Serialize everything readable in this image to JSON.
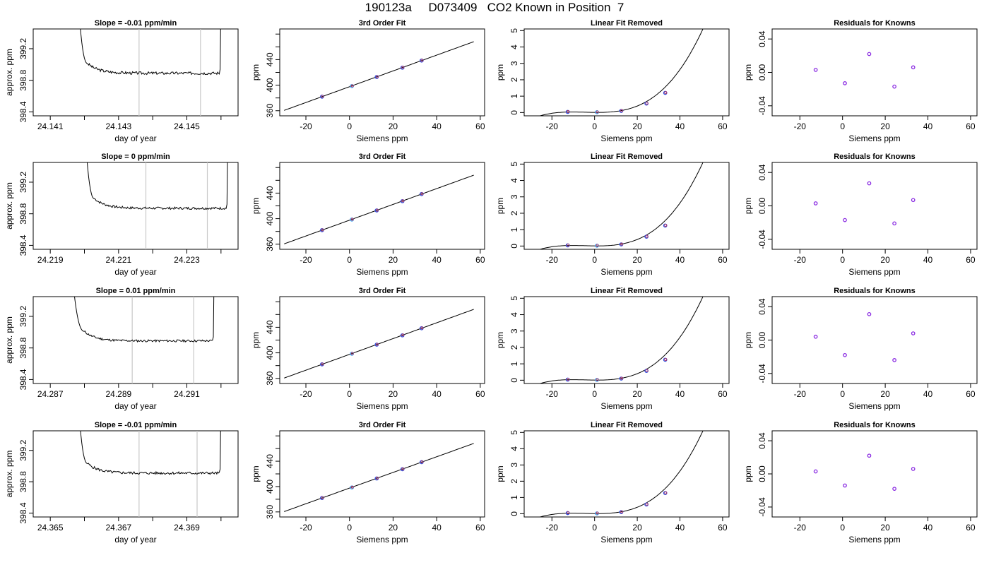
{
  "page_title": "190123a     D073409   CO2 Known in Position  7",
  "chart_data": [
    {
      "row": 0,
      "col": 0,
      "type": "line",
      "title": "Slope =  -0.01  ppm/min",
      "xlabel": "day of year",
      "ylabel": "approx. ppm",
      "xlim": [
        24.1405,
        24.1465
      ],
      "ylim": [
        398.35,
        399.45
      ],
      "xticks": [
        "24.141",
        "24.143",
        "24.145"
      ],
      "yticks": [
        "398.4",
        "398.8",
        "399.2"
      ],
      "vlines": [
        24.1436,
        24.1454
      ],
      "trace": {
        "x0": 24.1418,
        "x1": 24.146,
        "plateau": 398.89,
        "wiggle": 0.018,
        "drop_end": 24.1421,
        "seed": 3
      }
    },
    {
      "row": 0,
      "col": 1,
      "type": "scatter",
      "title": "3rd Order Fit",
      "xlabel": "Siemens ppm",
      "ylabel": "ppm",
      "xlim": [
        -32,
        62
      ],
      "ylim": [
        352,
        488
      ],
      "xticks": [
        "-20",
        "0",
        "20",
        "40",
        "60"
      ],
      "yticks": [
        "360",
        "400",
        "440"
      ],
      "points": [
        [
          -12.6,
          382
        ],
        [
          1.1,
          398.6
        ],
        [
          12.5,
          412.8
        ],
        [
          24.3,
          427.4
        ],
        [
          33.1,
          438.5
        ]
      ],
      "fit_range": [
        -30,
        57
      ]
    },
    {
      "row": 0,
      "col": 2,
      "type": "scatter",
      "title": "Linear Fit Removed",
      "xlabel": "Siemens ppm",
      "ylabel": "ppm",
      "xlim": [
        -33,
        63
      ],
      "ylim": [
        -0.2,
        5.1
      ],
      "xticks": [
        "-20",
        "0",
        "20",
        "40",
        "60"
      ],
      "yticks": [
        "0",
        "1",
        "2",
        "3",
        "4",
        "5"
      ],
      "points": [
        [
          -12.6,
          0.04
        ],
        [
          1.1,
          0.02
        ],
        [
          12.5,
          0.1
        ],
        [
          24.3,
          0.55
        ],
        [
          33.1,
          1.2
        ]
      ],
      "fit_range": [
        -30,
        57
      ]
    },
    {
      "row": 0,
      "col": 3,
      "type": "scatter",
      "title": "Residuals for Knowns",
      "xlabel": "Siemens ppm",
      "ylabel": "ppm",
      "xlim": [
        -33,
        63
      ],
      "ylim": [
        -0.052,
        0.052
      ],
      "xticks": [
        "-20",
        "0",
        "20",
        "40",
        "60"
      ],
      "yticks": [
        "-0.04",
        "0.00",
        "0.04"
      ],
      "points": [
        [
          -12.6,
          0.003
        ],
        [
          1.1,
          -0.013
        ],
        [
          12.5,
          0.022
        ],
        [
          24.3,
          -0.017
        ],
        [
          33.1,
          0.006
        ]
      ]
    },
    {
      "row": 1,
      "col": 0,
      "type": "line",
      "title": "Slope =  0  ppm/min",
      "xlabel": "day of year",
      "ylabel": "approx. ppm",
      "xlim": [
        24.2185,
        24.2245
      ],
      "ylim": [
        398.35,
        399.45
      ],
      "xticks": [
        "24.219",
        "24.221",
        "24.223"
      ],
      "yticks": [
        "398.4",
        "398.8",
        "399.2"
      ],
      "vlines": [
        24.2218,
        24.2236
      ],
      "trace": {
        "x0": 24.22,
        "x1": 24.2242,
        "plateau": 398.87,
        "wiggle": 0.015,
        "drop_end": 24.2203,
        "seed": 7
      }
    },
    {
      "row": 1,
      "col": 1,
      "type": "scatter",
      "title": "3rd Order Fit",
      "xlabel": "Siemens ppm",
      "ylabel": "ppm",
      "xlim": [
        -32,
        62
      ],
      "ylim": [
        352,
        488
      ],
      "xticks": [
        "-20",
        "0",
        "20",
        "40",
        "60"
      ],
      "yticks": [
        "360",
        "400",
        "440"
      ],
      "points": [
        [
          -12.6,
          382
        ],
        [
          1.1,
          398.6
        ],
        [
          12.5,
          412.8
        ],
        [
          24.3,
          427.4
        ],
        [
          33.1,
          438.5
        ]
      ],
      "fit_range": [
        -30,
        57
      ]
    },
    {
      "row": 1,
      "col": 2,
      "type": "scatter",
      "title": "Linear Fit Removed",
      "xlabel": "Siemens ppm",
      "ylabel": "ppm",
      "xlim": [
        -33,
        63
      ],
      "ylim": [
        -0.2,
        5.1
      ],
      "xticks": [
        "-20",
        "0",
        "20",
        "40",
        "60"
      ],
      "yticks": [
        "0",
        "1",
        "2",
        "3",
        "4",
        "5"
      ],
      "points": [
        [
          -12.6,
          0.04
        ],
        [
          1.1,
          0.02
        ],
        [
          12.5,
          0.1
        ],
        [
          24.3,
          0.57
        ],
        [
          33.1,
          1.25
        ]
      ],
      "fit_range": [
        -30,
        57
      ]
    },
    {
      "row": 1,
      "col": 3,
      "type": "scatter",
      "title": "Residuals for Knowns",
      "xlabel": "Siemens ppm",
      "ylabel": "ppm",
      "xlim": [
        -33,
        63
      ],
      "ylim": [
        -0.052,
        0.052
      ],
      "xticks": [
        "-20",
        "0",
        "20",
        "40",
        "60"
      ],
      "yticks": [
        "-0.04",
        "0.00",
        "0.04"
      ],
      "points": [
        [
          -12.6,
          0.003
        ],
        [
          1.1,
          -0.017
        ],
        [
          12.5,
          0.027
        ],
        [
          24.3,
          -0.021
        ],
        [
          33.1,
          0.007
        ]
      ]
    },
    {
      "row": 2,
      "col": 0,
      "type": "line",
      "title": "Slope =  0.01  ppm/min",
      "xlabel": "day of year",
      "ylabel": "approx. ppm",
      "xlim": [
        24.2865,
        24.2925
      ],
      "ylim": [
        398.35,
        399.45
      ],
      "xticks": [
        "24.287",
        "24.289",
        "24.291"
      ],
      "yticks": [
        "398.4",
        "398.8",
        "399.2"
      ],
      "vlines": [
        24.2894,
        24.2912
      ],
      "trace": {
        "x0": 24.2876,
        "x1": 24.2918,
        "plateau": 398.89,
        "wiggle": 0.014,
        "drop_end": 24.288,
        "seed": 11
      }
    },
    {
      "row": 2,
      "col": 1,
      "type": "scatter",
      "title": "3rd Order Fit",
      "xlabel": "Siemens ppm",
      "ylabel": "ppm",
      "xlim": [
        -32,
        62
      ],
      "ylim": [
        352,
        488
      ],
      "xticks": [
        "-20",
        "0",
        "20",
        "40",
        "60"
      ],
      "yticks": [
        "360",
        "400",
        "440"
      ],
      "points": [
        [
          -12.6,
          382
        ],
        [
          1.1,
          398.6
        ],
        [
          12.5,
          412.8
        ],
        [
          24.3,
          427.4
        ],
        [
          33.1,
          438.5
        ]
      ],
      "fit_range": [
        -30,
        57
      ]
    },
    {
      "row": 2,
      "col": 2,
      "type": "scatter",
      "title": "Linear Fit Removed",
      "xlabel": "Siemens ppm",
      "ylabel": "ppm",
      "xlim": [
        -33,
        63
      ],
      "ylim": [
        -0.2,
        5.1
      ],
      "xticks": [
        "-20",
        "0",
        "20",
        "40",
        "60"
      ],
      "yticks": [
        "0",
        "1",
        "2",
        "3",
        "4",
        "5"
      ],
      "points": [
        [
          -12.6,
          0.04
        ],
        [
          1.1,
          0.02
        ],
        [
          12.5,
          0.1
        ],
        [
          24.3,
          0.57
        ],
        [
          33.1,
          1.25
        ]
      ],
      "fit_range": [
        -30,
        57
      ]
    },
    {
      "row": 2,
      "col": 3,
      "type": "scatter",
      "title": "Residuals for Knowns",
      "xlabel": "Siemens ppm",
      "ylabel": "ppm",
      "xlim": [
        -33,
        63
      ],
      "ylim": [
        -0.052,
        0.052
      ],
      "xticks": [
        "-20",
        "0",
        "20",
        "40",
        "60"
      ],
      "yticks": [
        "-0.04",
        "0.00",
        "0.04"
      ],
      "points": [
        [
          -12.6,
          0.004
        ],
        [
          1.1,
          -0.018
        ],
        [
          12.5,
          0.031
        ],
        [
          24.3,
          -0.024
        ],
        [
          33.1,
          0.008
        ]
      ]
    },
    {
      "row": 3,
      "col": 0,
      "type": "line",
      "title": "Slope =  -0.01  ppm/min",
      "xlabel": "day of year",
      "ylabel": "approx. ppm",
      "xlim": [
        24.3645,
        24.3705
      ],
      "ylim": [
        398.35,
        399.45
      ],
      "xticks": [
        "24.365",
        "24.367",
        "24.369"
      ],
      "yticks": [
        "398.4",
        "398.8",
        "399.2"
      ],
      "vlines": [
        24.3676,
        24.3693
      ],
      "trace": {
        "x0": 24.3658,
        "x1": 24.37,
        "plateau": 398.91,
        "wiggle": 0.017,
        "drop_end": 24.3661,
        "seed": 5
      }
    },
    {
      "row": 3,
      "col": 1,
      "type": "scatter",
      "title": "3rd Order Fit",
      "xlabel": "Siemens ppm",
      "ylabel": "ppm",
      "xlim": [
        -32,
        62
      ],
      "ylim": [
        352,
        488
      ],
      "xticks": [
        "-20",
        "0",
        "20",
        "40",
        "60"
      ],
      "yticks": [
        "360",
        "400",
        "440"
      ],
      "points": [
        [
          -12.6,
          382
        ],
        [
          1.1,
          398.6
        ],
        [
          12.5,
          412.8
        ],
        [
          24.3,
          427.4
        ],
        [
          33.1,
          438.5
        ]
      ],
      "fit_range": [
        -30,
        57
      ]
    },
    {
      "row": 3,
      "col": 2,
      "type": "scatter",
      "title": "Linear Fit Removed",
      "xlabel": "Siemens ppm",
      "ylabel": "ppm",
      "xlim": [
        -33,
        63
      ],
      "ylim": [
        -0.2,
        5.1
      ],
      "xticks": [
        "-20",
        "0",
        "20",
        "40",
        "60"
      ],
      "yticks": [
        "0",
        "1",
        "2",
        "3",
        "4",
        "5"
      ],
      "points": [
        [
          -12.6,
          0.04
        ],
        [
          1.1,
          0.02
        ],
        [
          12.5,
          0.1
        ],
        [
          24.3,
          0.57
        ],
        [
          33.1,
          1.27
        ]
      ],
      "fit_range": [
        -30,
        57
      ]
    },
    {
      "row": 3,
      "col": 3,
      "type": "scatter",
      "title": "Residuals for Knowns",
      "xlabel": "Siemens ppm",
      "ylabel": "ppm",
      "xlim": [
        -33,
        63
      ],
      "ylim": [
        -0.052,
        0.052
      ],
      "xticks": [
        "-20",
        "0",
        "20",
        "40",
        "60"
      ],
      "yticks": [
        "-0.04",
        "0.00",
        "0.04"
      ],
      "points": [
        [
          -12.6,
          0.003
        ],
        [
          1.1,
          -0.014
        ],
        [
          12.5,
          0.022
        ],
        [
          24.3,
          -0.018
        ],
        [
          33.1,
          0.006
        ]
      ]
    }
  ]
}
